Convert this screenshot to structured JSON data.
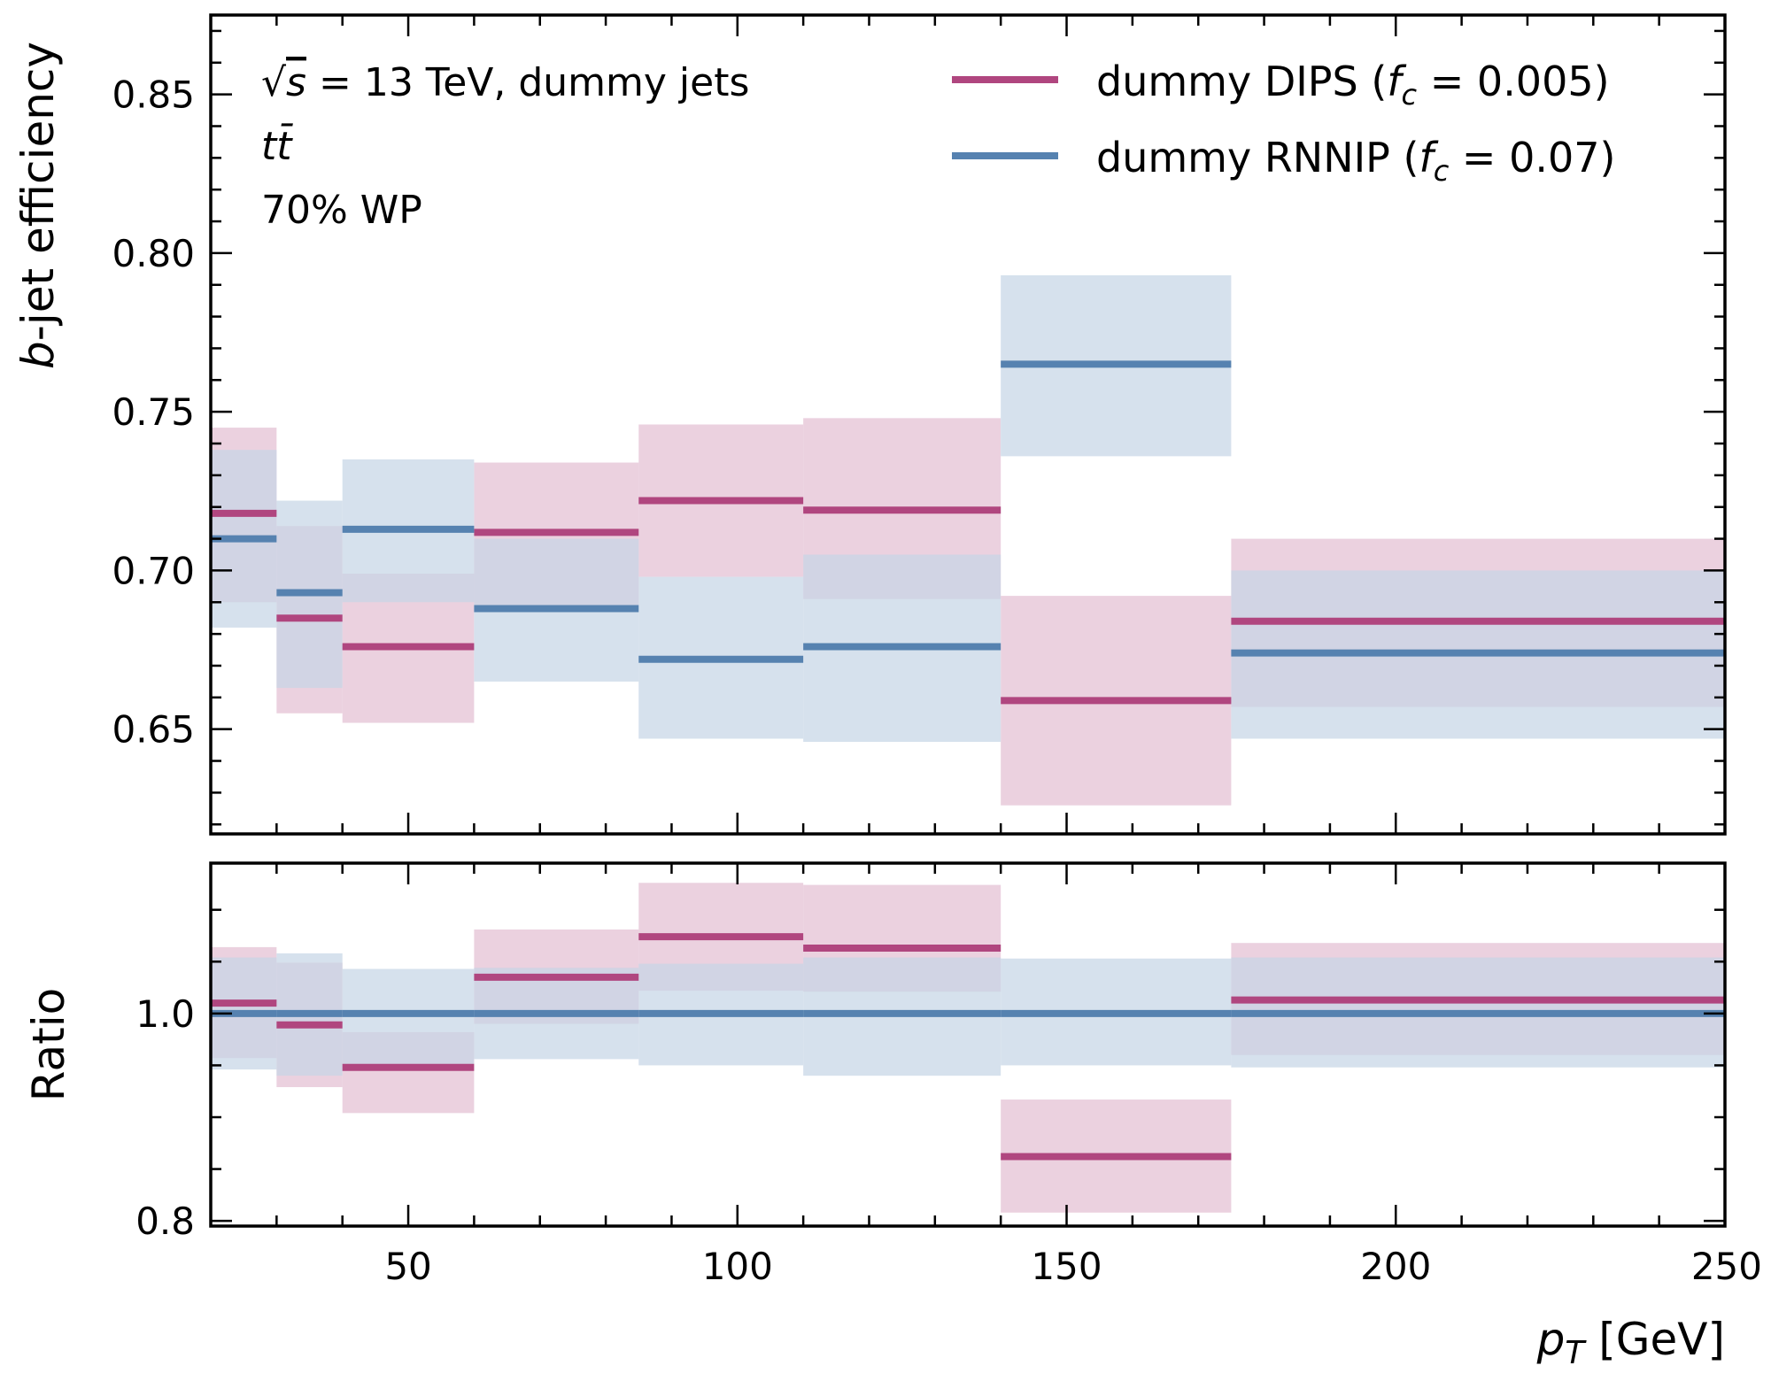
{
  "chart_data": {
    "type": "step-with-uncertainty-bands",
    "bin_edges": [
      20,
      30,
      40,
      60,
      85,
      110,
      140,
      175,
      250
    ],
    "xlabel": "p_T [GeV]",
    "xlim": [
      20,
      250
    ],
    "x_ticks": [
      50,
      100,
      150,
      200,
      250
    ],
    "top_panel": {
      "ylabel": "b-jet efficiency",
      "ylim": [
        0.617,
        0.875
      ],
      "y_ticks": [
        0.65,
        0.7,
        0.75,
        0.8,
        0.85
      ],
      "y_tick_labels": [
        "0.65",
        "0.70",
        "0.75",
        "0.80",
        "0.85"
      ]
    },
    "ratio_panel": {
      "ylabel": "Ratio",
      "ylim": [
        0.795,
        1.145
      ],
      "y_ticks": [
        0.8,
        1.0
      ],
      "y_tick_labels": [
        "0.8",
        "1.0"
      ]
    },
    "series": [
      {
        "name": "dummy DIPS",
        "fc": "0.005",
        "color": "#b0467f",
        "band_color": "#e3bfd3",
        "values": [
          0.718,
          0.685,
          0.676,
          0.712,
          0.722,
          0.719,
          0.659,
          0.684
        ],
        "band_low": [
          0.69,
          0.655,
          0.652,
          0.689,
          0.698,
          0.691,
          0.626,
          0.657
        ],
        "band_high": [
          0.745,
          0.714,
          0.699,
          0.734,
          0.746,
          0.748,
          0.692,
          0.71
        ],
        "ratio": [
          1.01,
          0.989,
          0.948,
          1.035,
          1.074,
          1.063,
          0.862,
          1.013
        ],
        "ratio_low": [
          0.957,
          0.929,
          0.904,
          0.99,
          1.022,
          1.021,
          0.808,
          0.96
        ],
        "ratio_high": [
          1.064,
          1.049,
          0.982,
          1.081,
          1.126,
          1.124,
          0.917,
          1.068
        ]
      },
      {
        "name": "dummy RNNIP",
        "fc": "0.07",
        "color": "#5682b0",
        "band_color": "#c6d5e6",
        "values": [
          0.71,
          0.693,
          0.713,
          0.688,
          0.672,
          0.676,
          0.765,
          0.674
        ],
        "band_low": [
          0.682,
          0.663,
          0.69,
          0.665,
          0.647,
          0.646,
          0.736,
          0.647
        ],
        "band_high": [
          0.738,
          0.722,
          0.735,
          0.71,
          0.698,
          0.705,
          0.793,
          0.7
        ],
        "ratio": [
          1.0,
          1.0,
          1.0,
          1.0,
          1.0,
          1.0,
          1.0,
          1.0
        ],
        "ratio_low": [
          0.946,
          0.94,
          0.951,
          0.956,
          0.95,
          0.94,
          0.95,
          0.948
        ],
        "ratio_high": [
          1.054,
          1.058,
          1.043,
          1.044,
          1.048,
          1.054,
          1.053,
          1.054
        ]
      }
    ],
    "annotations": {
      "energy_prefix": "√",
      "energy_symbol": "s",
      "energy_value": " = 13 TeV, dummy jets",
      "process_main": "t",
      "process_bar": "t̄",
      "working_point": "70% WP"
    }
  }
}
